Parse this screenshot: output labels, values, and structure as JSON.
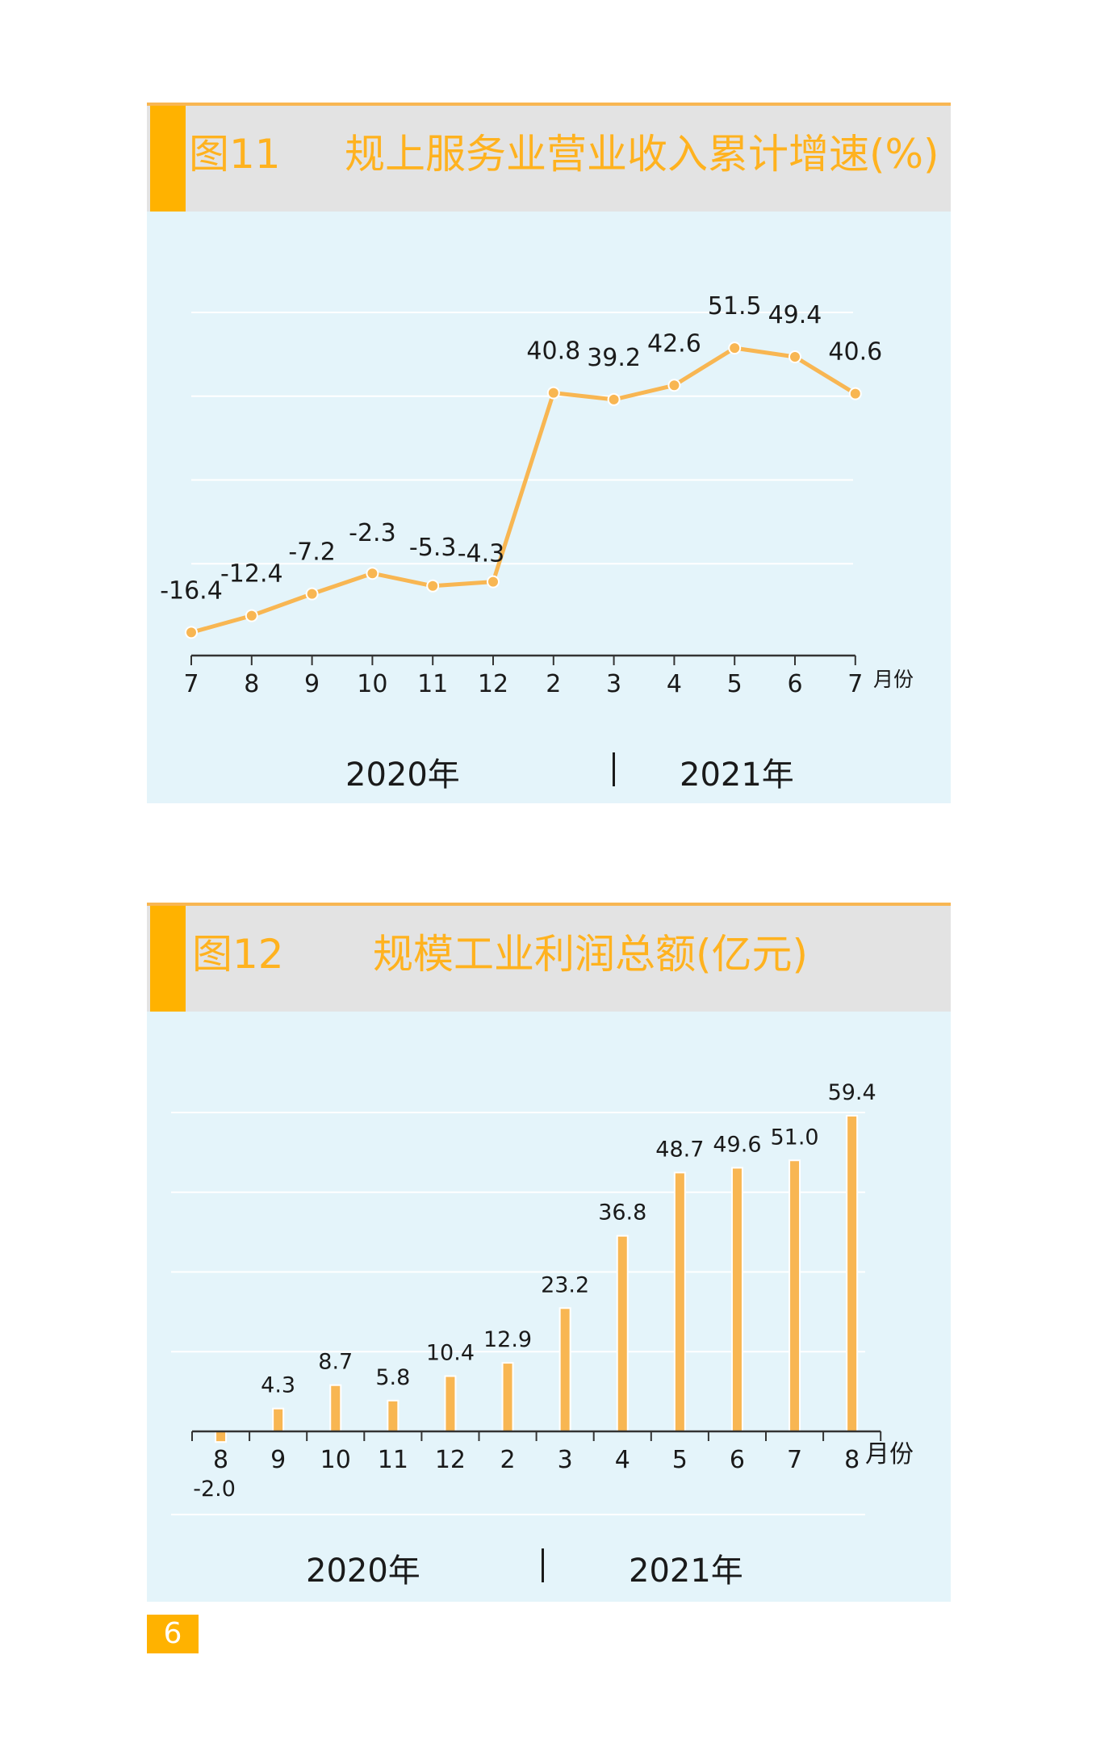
{
  "figure11": {
    "fig_no": "图11",
    "title": "规上服务业营业收入累计增速(%)",
    "unit_label": "月份",
    "year_left": "2020年",
    "year_right": "2021年"
  },
  "figure12": {
    "fig_no": "图12",
    "title": "规模工业利润总额(亿元)",
    "unit_label": "月份",
    "year_left": "2020年",
    "year_right": "2021年"
  },
  "page_number": "6",
  "colors": {
    "accent": "#ffb200",
    "line": "#f8b652",
    "bar": "#f8b652",
    "plot_bg": "#e4f4fa",
    "header_bg": "#e3e3e3"
  },
  "chart_data": [
    {
      "type": "line",
      "title": "规上服务业营业收入累计增速(%)",
      "xlabel": "月份",
      "categories": [
        "7",
        "8",
        "9",
        "10",
        "11",
        "12",
        "2",
        "3",
        "4",
        "5",
        "6",
        "7"
      ],
      "values": [
        -16.4,
        -12.4,
        -7.2,
        -2.3,
        -5.3,
        -4.3,
        40.8,
        39.2,
        42.6,
        51.5,
        49.4,
        40.6
      ],
      "labels": [
        "-16.4",
        "-12.4",
        "-7.2",
        "-2.3",
        "-5.3",
        "-4.3",
        "40.8",
        "39.2",
        "42.6",
        "51.5",
        "49.4",
        "40.6"
      ],
      "ylim": [
        -25,
        60
      ],
      "grid": true,
      "groups": [
        "2020年",
        "2021年"
      ]
    },
    {
      "type": "bar",
      "title": "规模工业利润总额(亿元)",
      "xlabel": "月份",
      "categories": [
        "8",
        "9",
        "10",
        "11",
        "12",
        "2",
        "3",
        "4",
        "5",
        "6",
        "7",
        "8"
      ],
      "values": [
        -2.0,
        4.3,
        8.7,
        5.8,
        10.4,
        12.9,
        23.2,
        36.8,
        48.7,
        49.6,
        51.0,
        59.4
      ],
      "labels": [
        "-2.0",
        "4.3",
        "8.7",
        "5.8",
        "10.4",
        "12.9",
        "23.2",
        "36.8",
        "48.7",
        "49.6",
        "51.0",
        "59.4"
      ],
      "ylim": [
        0,
        60
      ],
      "grid": true,
      "groups": [
        "2020年",
        "2021年"
      ]
    }
  ]
}
